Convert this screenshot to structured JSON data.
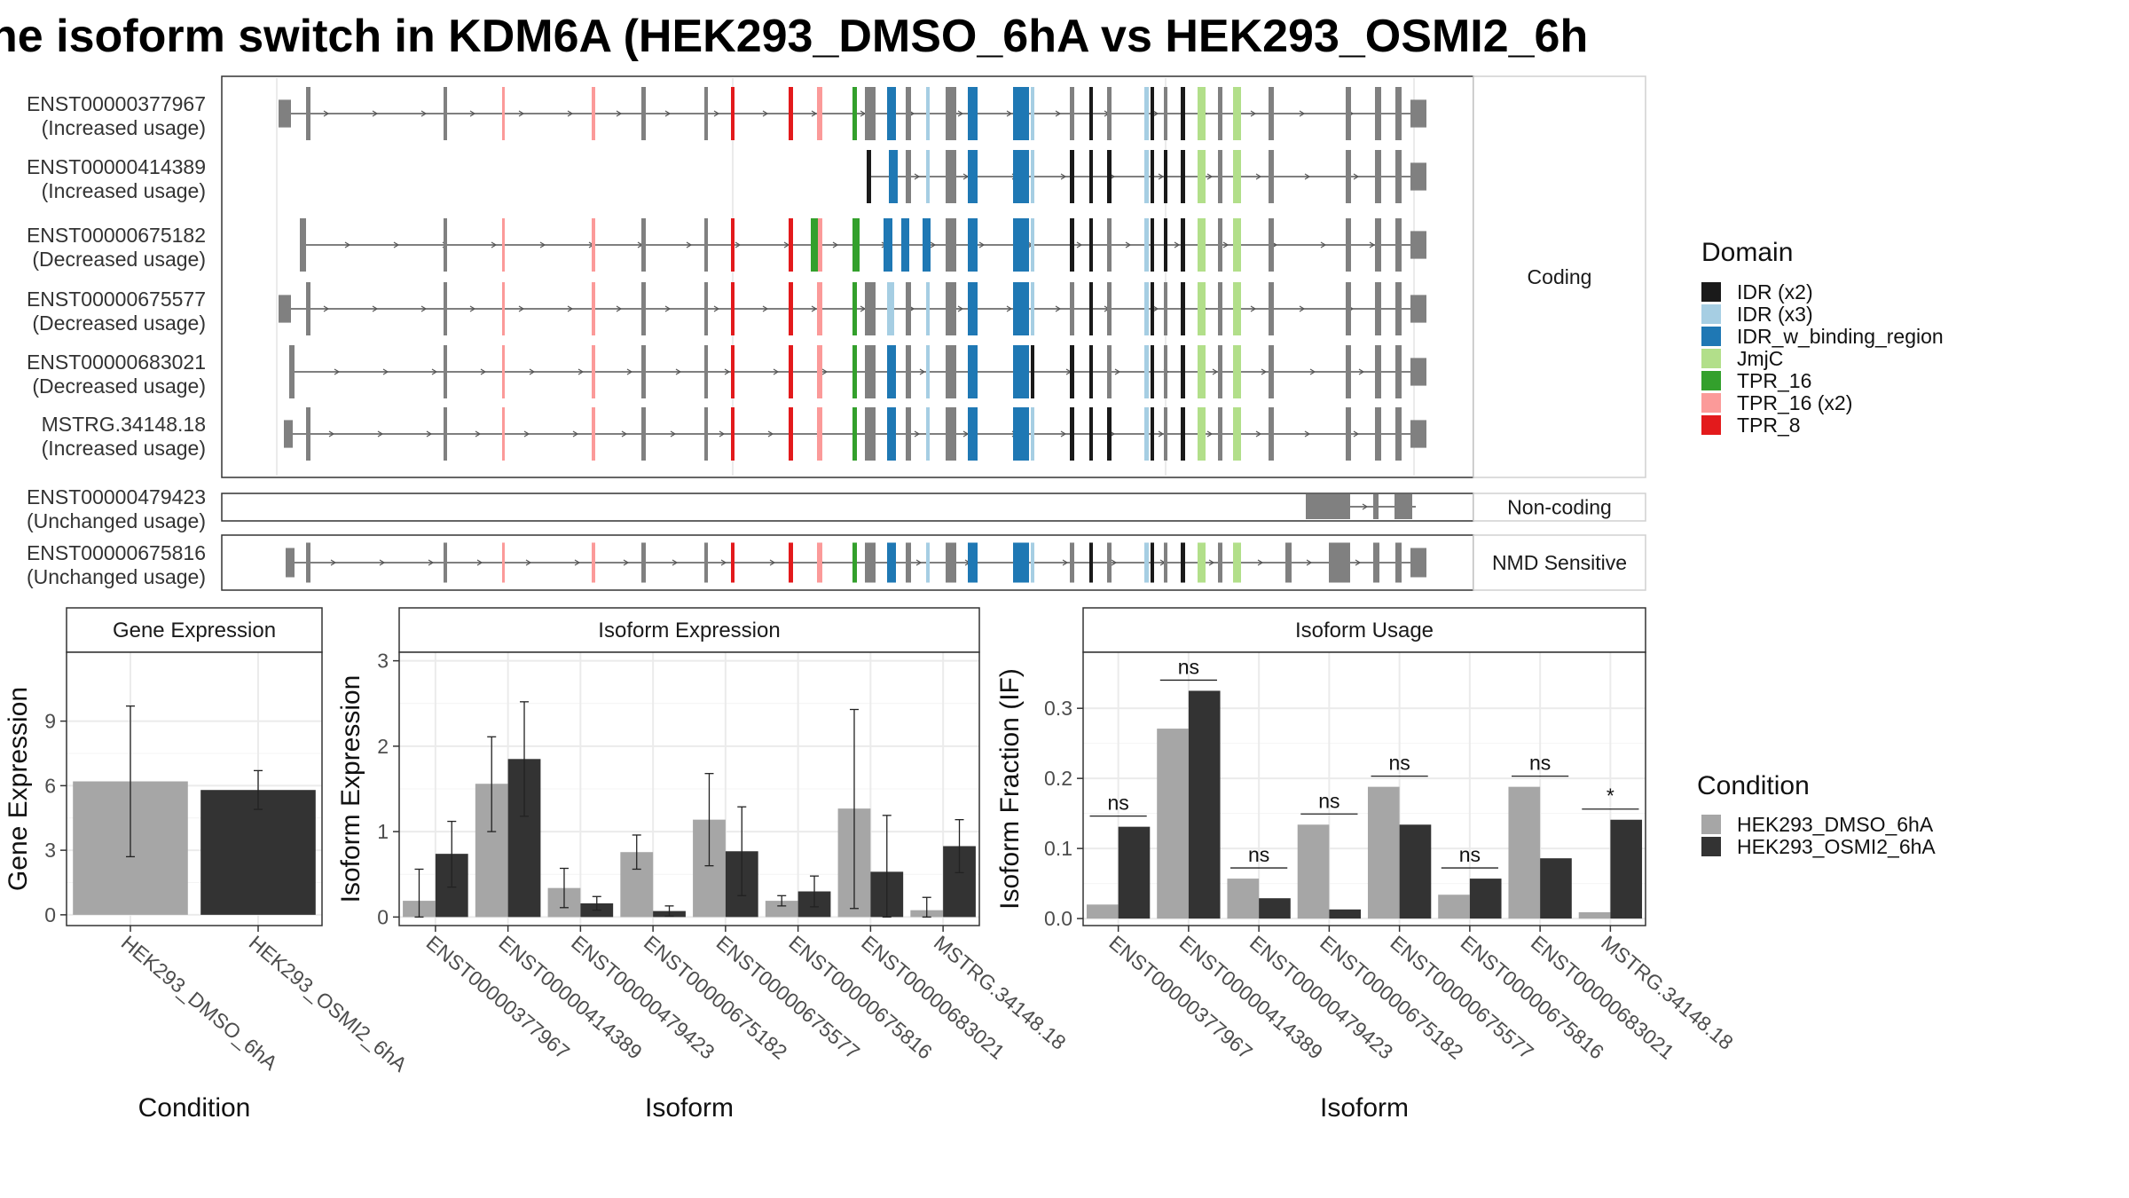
{
  "title": "ne isoform switch in KDM6A (HEK293_DMSO_6hA vs HEK293_OSMI2_6h",
  "colors": {
    "exon": "#808080",
    "line": "#555555",
    "panel_border": "#333333",
    "grid": "#ebebeb",
    "dmso": "#a6a6a6",
    "osmi": "#333333",
    "IDR (x2)": "#1a1a1a",
    "IDR (x3)": "#a6cee3",
    "IDR_w_binding_region": "#1f78b4",
    "JmjC": "#b2df8a",
    "TPR_16": "#33a02c",
    "TPR_16 (x2)": "#fb9a99",
    "TPR_8": "#e31a1c"
  },
  "chart_data": [
    {
      "type": "gene-structure",
      "facets": [
        "Coding",
        "Non-coding",
        "NMD Sensitive"
      ],
      "isoforms": [
        {
          "id": "ENST00000377967",
          "usage": "(Increased usage)",
          "category": "Coding"
        },
        {
          "id": "ENST00000414389",
          "usage": "(Increased usage)",
          "category": "Coding"
        },
        {
          "id": "ENST00000675182",
          "usage": "(Decreased usage)",
          "category": "Coding"
        },
        {
          "id": "ENST00000675577",
          "usage": "(Decreased usage)",
          "category": "Coding"
        },
        {
          "id": "ENST00000683021",
          "usage": "(Decreased usage)",
          "category": "Coding"
        },
        {
          "id": "MSTRG.34148.18",
          "usage": "(Increased usage)",
          "category": "Coding"
        },
        {
          "id": "ENST00000479423",
          "usage": "(Unchanged usage)",
          "category": "Non-coding"
        },
        {
          "id": "ENST00000675816",
          "usage": "(Unchanged usage)",
          "category": "NMD Sensitive"
        }
      ],
      "domain_legend_title": "Domain",
      "domains": [
        "IDR (x2)",
        "IDR (x3)",
        "IDR_w_binding_region",
        "JmjC",
        "TPR_16",
        "TPR_16 (x2)",
        "TPR_8"
      ]
    },
    {
      "type": "bar",
      "title": "Gene Expression",
      "xlabel": "Condition",
      "ylabel": "Gene Expression",
      "categories": [
        "HEK293_DMSO_6hA",
        "HEK293_OSMI2_6hA"
      ],
      "values": [
        6.2,
        5.8
      ],
      "errors": [
        [
          2.7,
          9.7
        ],
        [
          4.9,
          6.7
        ]
      ],
      "ylim": [
        -0.5,
        12.2
      ],
      "yticks": [
        0,
        3,
        6,
        9
      ]
    },
    {
      "type": "bar",
      "title": "Isoform Expression",
      "xlabel": "Isoform",
      "ylabel": "Isoform Expression",
      "categories": [
        "ENST00000377967",
        "ENST00000414389",
        "ENST00000479423",
        "ENST00000675182",
        "ENST00000675577",
        "ENST00000675816",
        "ENST00000683021",
        "MSTRG.34148.18"
      ],
      "series": [
        {
          "name": "HEK293_DMSO_6hA",
          "values": [
            0.19,
            1.56,
            0.34,
            0.76,
            1.14,
            0.19,
            1.27,
            0.08
          ],
          "errors": [
            [
              0.0,
              0.56
            ],
            [
              1.0,
              2.11
            ],
            [
              0.11,
              0.57
            ],
            [
              0.56,
              0.96
            ],
            [
              0.6,
              1.68
            ],
            [
              0.13,
              0.25
            ],
            [
              0.1,
              2.43
            ],
            [
              0.0,
              0.23
            ]
          ]
        },
        {
          "name": "HEK293_OSMI2_6hA",
          "values": [
            0.74,
            1.85,
            0.16,
            0.07,
            0.77,
            0.3,
            0.53,
            0.83
          ],
          "errors": [
            [
              0.35,
              1.12
            ],
            [
              1.18,
              2.52
            ],
            [
              0.08,
              0.24
            ],
            [
              0.01,
              0.13
            ],
            [
              0.25,
              1.29
            ],
            [
              0.12,
              0.48
            ],
            [
              0.0,
              1.19
            ],
            [
              0.52,
              1.14
            ]
          ]
        }
      ],
      "ylim": [
        -0.1,
        3.1
      ],
      "yticks": [
        0,
        1,
        2,
        3
      ]
    },
    {
      "type": "bar",
      "title": "Isoform Usage",
      "xlabel": "Isoform",
      "ylabel": "Isoform Fraction (IF)",
      "categories": [
        "ENST00000377967",
        "ENST00000414389",
        "ENST00000479423",
        "ENST00000675182",
        "ENST00000675577",
        "ENST00000675816",
        "ENST00000683021",
        "MSTRG.34148.18"
      ],
      "series": [
        {
          "name": "HEK293_DMSO_6hA",
          "values": [
            0.02,
            0.271,
            0.057,
            0.134,
            0.188,
            0.034,
            0.188,
            0.009
          ]
        },
        {
          "name": "HEK293_OSMI2_6hA",
          "values": [
            0.131,
            0.325,
            0.029,
            0.013,
            0.134,
            0.057,
            0.086,
            0.141
          ]
        }
      ],
      "significance": [
        "ns",
        "ns",
        "ns",
        "ns",
        "ns",
        "ns",
        "ns",
        "*"
      ],
      "ylim": [
        -0.01,
        0.38
      ],
      "yticks": [
        "0.0",
        "0.1",
        "0.2",
        "0.3"
      ]
    }
  ],
  "condition_legend": {
    "title": "Condition",
    "items": [
      "HEK293_DMSO_6hA",
      "HEK293_OSMI2_6hA"
    ]
  }
}
